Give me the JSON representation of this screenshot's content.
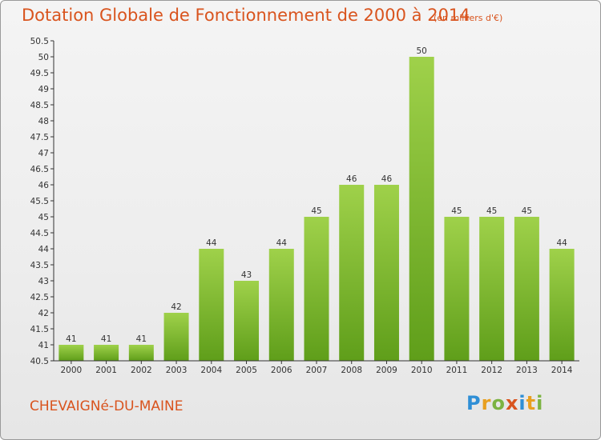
{
  "header": {
    "title": "Dotation Globale de Fonctionnement de 2000 à 2014",
    "unit": "(en milliers d'€)"
  },
  "footer": {
    "commune": "CHEVAIGNé-DU-MAINE",
    "logo_letters": [
      "P",
      "r",
      "o",
      "x",
      "i",
      "t",
      "i"
    ],
    "logo_colors": [
      "#2f8fd6",
      "#e8a020",
      "#7cb342",
      "#d9541e",
      "#2f8fd6",
      "#e8a020",
      "#7cb342"
    ]
  },
  "colors": {
    "bar_light": "#9fd14a",
    "bar_dark": "#5f9e1a",
    "axis": "#333333",
    "grid": "#d0d0d0",
    "accent": "#d9541e"
  },
  "chart_data": {
    "type": "bar",
    "categories": [
      "2000",
      "2001",
      "2002",
      "2003",
      "2004",
      "2005",
      "2006",
      "2007",
      "2008",
      "2009",
      "2010",
      "2011",
      "2012",
      "2013",
      "2014"
    ],
    "values": [
      41,
      41,
      41,
      42,
      44,
      43,
      44,
      45,
      46,
      46,
      50,
      45,
      45,
      45,
      44
    ],
    "ylim": [
      40.5,
      50.5
    ],
    "yticks": [
      "40.5",
      "41",
      "41.5",
      "42",
      "42.5",
      "43",
      "43.5",
      "44",
      "44.5",
      "45",
      "45.5",
      "46",
      "46.5",
      "47",
      "47.5",
      "48",
      "48.5",
      "49",
      "49.5",
      "50",
      "50.5"
    ],
    "grid": false,
    "xlabel": "",
    "ylabel": ""
  }
}
